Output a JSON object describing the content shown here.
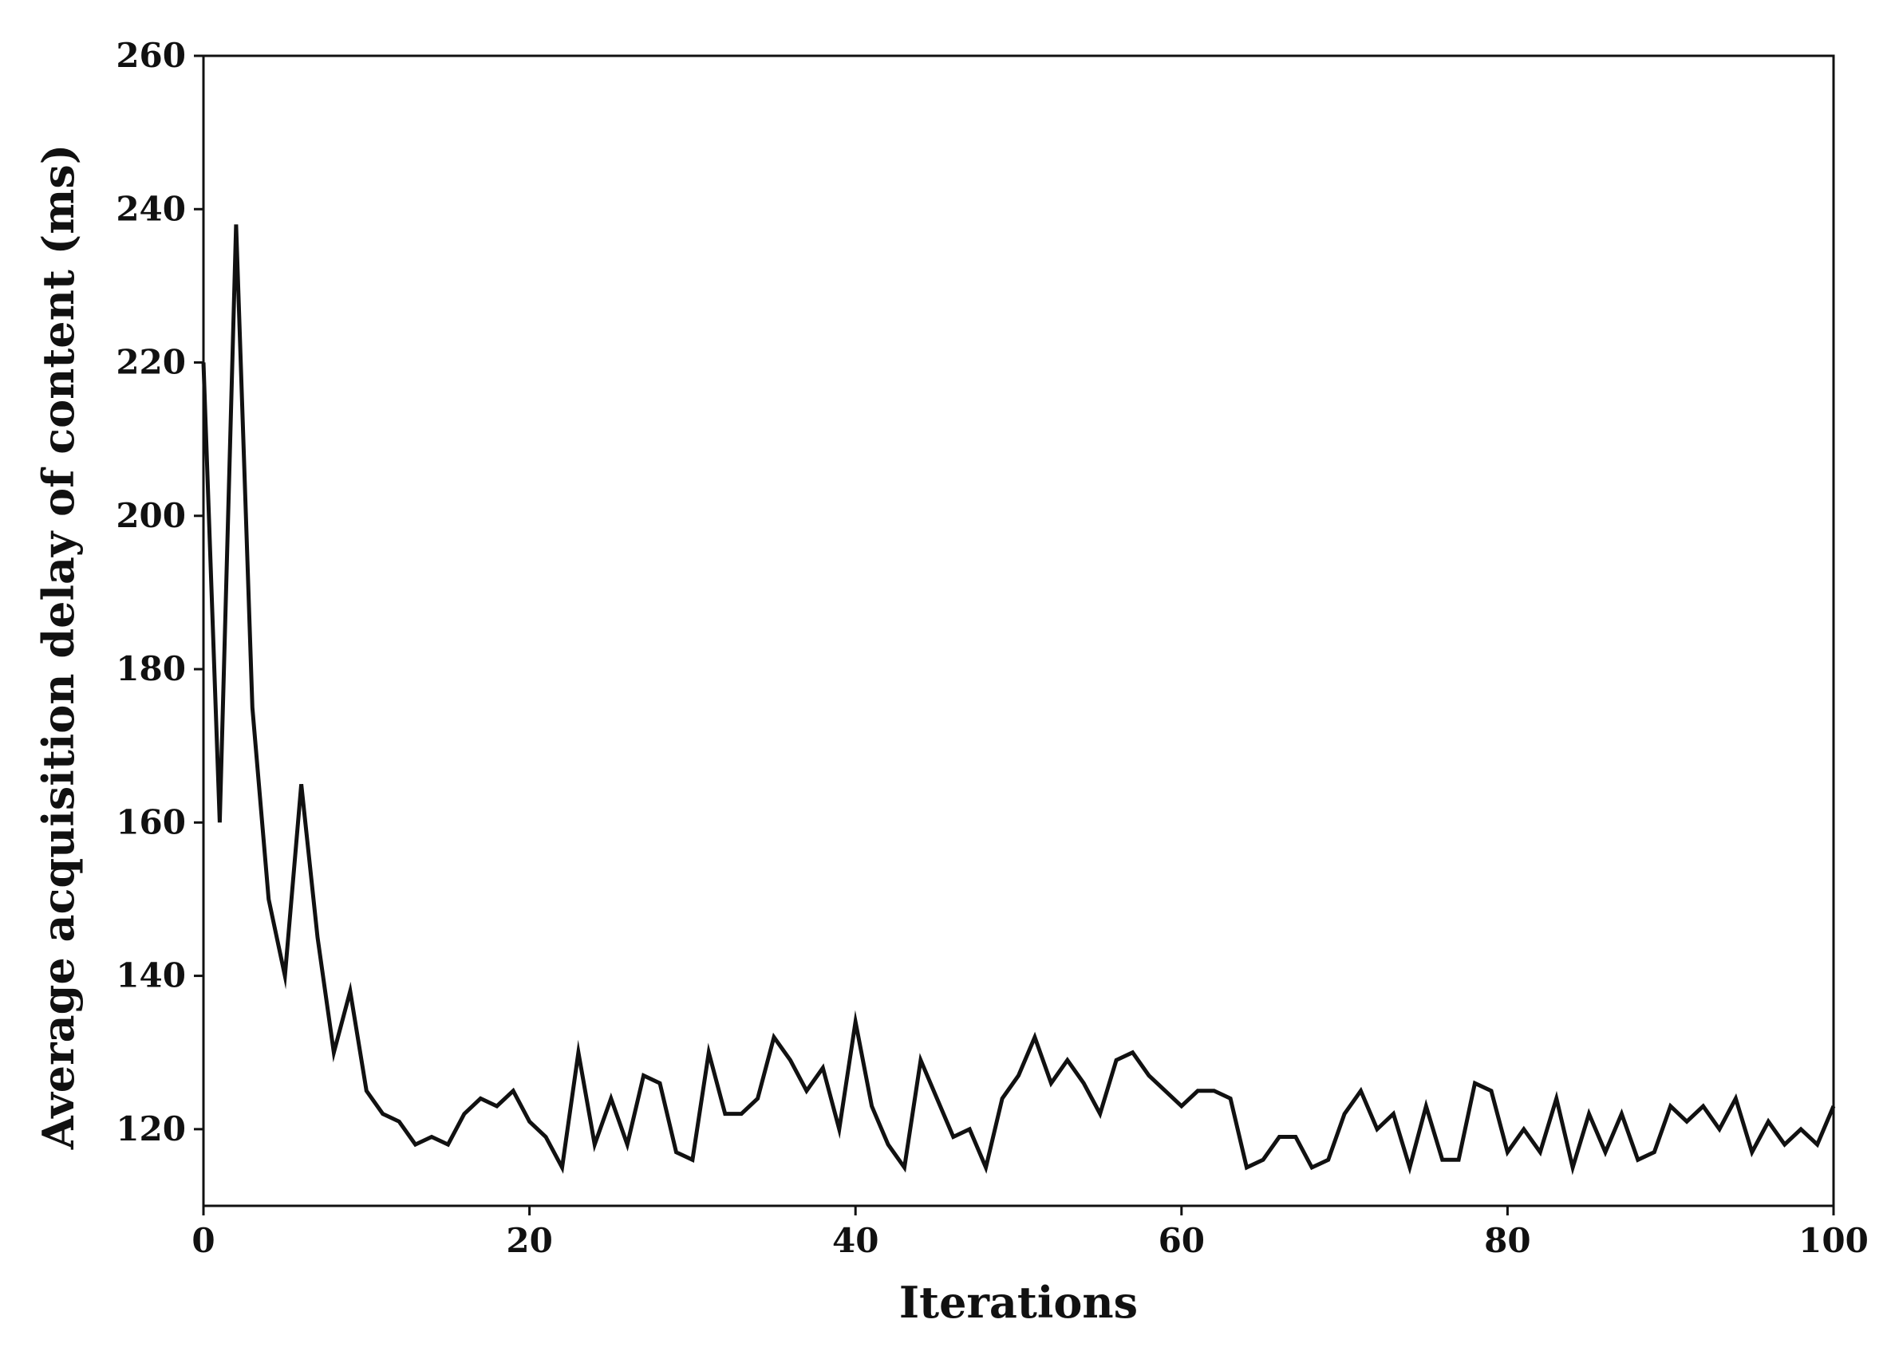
{
  "chart_data": {
    "type": "line",
    "title": "",
    "xlabel": "Iterations",
    "ylabel": "Average  acquisition  delay  of  content (ms)",
    "xlim": [
      0,
      100
    ],
    "ylim": [
      110,
      260
    ],
    "x_ticks": [
      0,
      20,
      40,
      60,
      80,
      100
    ],
    "y_ticks": [
      120,
      140,
      160,
      180,
      200,
      220,
      240,
      260
    ],
    "x_tick_labels": [
      "0",
      "20",
      "40",
      "60",
      "80",
      "100"
    ],
    "y_tick_labels": [
      "120",
      "140",
      "160",
      "180",
      "200",
      "220",
      "240",
      "260"
    ],
    "grid": false,
    "legend": "none",
    "line_color": "#111111",
    "series": [
      {
        "x": [
          0,
          1,
          2,
          3,
          4,
          5,
          6,
          7,
          8,
          9,
          10,
          11,
          12,
          13,
          14,
          15,
          16,
          17,
          18,
          19,
          20,
          21,
          22,
          23,
          24,
          25,
          26,
          27,
          28,
          29,
          30,
          31,
          32,
          33,
          34,
          35,
          36,
          37,
          38,
          39,
          40,
          41,
          42,
          43,
          44,
          45,
          46,
          47,
          48,
          49,
          50,
          51,
          52,
          53,
          54,
          55,
          56,
          57,
          58,
          59,
          60,
          61,
          62,
          63,
          64,
          65,
          66,
          67,
          68,
          69,
          70,
          71,
          72,
          73,
          74,
          75,
          76,
          77,
          78,
          79,
          80,
          81,
          82,
          83,
          84,
          85,
          86,
          87,
          88,
          89,
          90,
          91,
          92,
          93,
          94,
          95,
          96,
          97,
          98,
          99,
          100
        ],
        "values": [
          220,
          160,
          238,
          175,
          150,
          140,
          165,
          145,
          130,
          138,
          125,
          122,
          121,
          118,
          119,
          118,
          122,
          124,
          123,
          125,
          121,
          119,
          115,
          130,
          118,
          124,
          118,
          127,
          126,
          117,
          116,
          130,
          122,
          122,
          124,
          132,
          129,
          125,
          128,
          120,
          134,
          123,
          118,
          115,
          129,
          124,
          119,
          120,
          115,
          124,
          127,
          132,
          126,
          129,
          126,
          122,
          129,
          130,
          127,
          125,
          123,
          125,
          125,
          124,
          115,
          116,
          119,
          119,
          115,
          116,
          122,
          125,
          120,
          122,
          115,
          123,
          116,
          116,
          126,
          125,
          117,
          120,
          117,
          124,
          115,
          122,
          117,
          122,
          116,
          117,
          123,
          121,
          123,
          120,
          124,
          117,
          121,
          118,
          120,
          118,
          123
        ]
      }
    ]
  }
}
